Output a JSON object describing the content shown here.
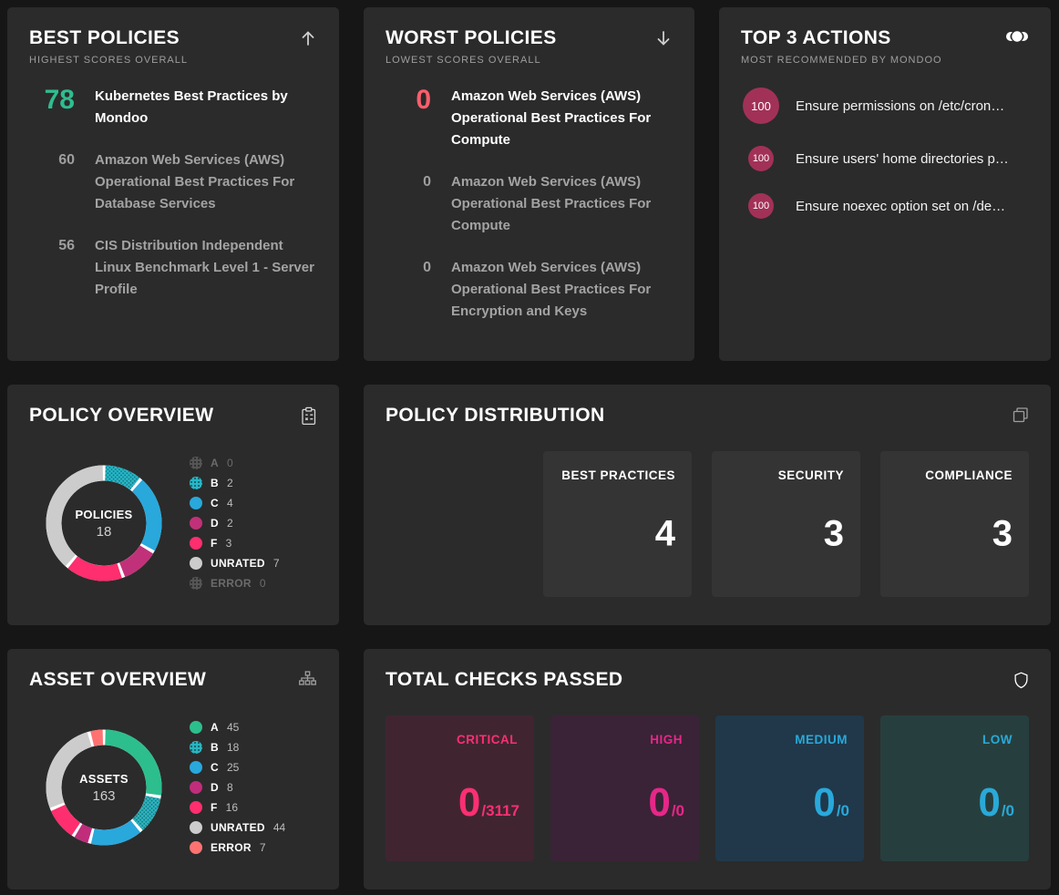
{
  "best_policies": {
    "title": "BEST POLICIES",
    "subtitle": "HIGHEST SCORES OVERALL",
    "accent": "#2ebd8f",
    "items": [
      {
        "score": "78",
        "name": "Kubernetes Best Practices by Mondoo"
      },
      {
        "score": "60",
        "name": "Amazon Web Services (AWS) Operational Best Practices For Database Services"
      },
      {
        "score": "56",
        "name": "CIS Distribution Independent Linux Benchmark Level 1 - Server Profile"
      }
    ]
  },
  "worst_policies": {
    "title": "WORST POLICIES",
    "subtitle": "LOWEST SCORES OVERALL",
    "accent": "#fb5e6c",
    "items": [
      {
        "score": "0",
        "name": "Amazon Web Services (AWS) Operational Best Practices For Compute"
      },
      {
        "score": "0",
        "name": "Amazon Web Services (AWS) Operational Best Practices For Compute"
      },
      {
        "score": "0",
        "name": "Amazon Web Services (AWS) Operational Best Practices For Encryption and Keys"
      }
    ]
  },
  "top_actions": {
    "title": "TOP 3 ACTIONS",
    "subtitle": "MOST RECOMMENDED BY MONDOO",
    "badge_color": "#a23158",
    "items": [
      {
        "score": "100",
        "name": "Ensure permissions on /etc/cron…"
      },
      {
        "score": "100",
        "name": "Ensure users' home directories p…"
      },
      {
        "score": "100",
        "name": "Ensure noexec option set on /de…"
      }
    ]
  },
  "policy_overview": {
    "title": "POLICY OVERVIEW",
    "center_label": "POLICIES",
    "center_value": "18",
    "chart": {
      "type": "donut",
      "total": 18,
      "segments": [
        {
          "grade": "B",
          "value": 2,
          "color": "#26b8c9",
          "textured": true
        },
        {
          "grade": "C",
          "value": 4,
          "color": "#29a8dc"
        },
        {
          "grade": "D",
          "value": 2,
          "color": "#c13179"
        },
        {
          "grade": "F",
          "value": 3,
          "color": "#ff2e6e"
        },
        {
          "grade": "UNRATED",
          "value": 7,
          "color": "#cccccc"
        }
      ]
    },
    "legend": [
      {
        "grade": "A",
        "value": "0",
        "color": "#555555",
        "dim": true
      },
      {
        "grade": "B",
        "value": "2",
        "color": "#26b8c9"
      },
      {
        "grade": "C",
        "value": "4",
        "color": "#29a8dc"
      },
      {
        "grade": "D",
        "value": "2",
        "color": "#c13179"
      },
      {
        "grade": "F",
        "value": "3",
        "color": "#ff2e6e"
      },
      {
        "grade": "UNRATED",
        "value": "7",
        "color": "#cccccc"
      },
      {
        "grade": "ERROR",
        "value": "0",
        "color": "#555555",
        "dim": true
      }
    ]
  },
  "policy_distribution": {
    "title": "POLICY DISTRIBUTION",
    "tile_bg": "#343434",
    "tiles": [
      {
        "label": "BEST PRACTICES",
        "value": "4"
      },
      {
        "label": "SECURITY",
        "value": "3"
      },
      {
        "label": "COMPLIANCE",
        "value": "3"
      }
    ]
  },
  "asset_overview": {
    "title": "ASSET OVERVIEW",
    "center_label": "ASSETS",
    "center_value": "163",
    "chart": {
      "type": "donut",
      "total": 163,
      "segments": [
        {
          "grade": "A",
          "value": 45,
          "color": "#2dbe8e"
        },
        {
          "grade": "B",
          "value": 18,
          "color": "#2ab6c2",
          "textured": true
        },
        {
          "grade": "C",
          "value": 25,
          "color": "#29a8dc"
        },
        {
          "grade": "D",
          "value": 8,
          "color": "#c02d7b"
        },
        {
          "grade": "F",
          "value": 16,
          "color": "#ff2e6e"
        },
        {
          "grade": "UNRATED",
          "value": 44,
          "color": "#cccccc"
        },
        {
          "grade": "ERROR",
          "value": 7,
          "color": "#ff7272"
        }
      ]
    },
    "legend": [
      {
        "grade": "A",
        "value": "45",
        "color": "#2dbe8e"
      },
      {
        "grade": "B",
        "value": "18",
        "color": "#2ab6c2"
      },
      {
        "grade": "C",
        "value": "25",
        "color": "#29a8dc"
      },
      {
        "grade": "D",
        "value": "8",
        "color": "#c02d7b"
      },
      {
        "grade": "F",
        "value": "16",
        "color": "#ff2e6e"
      },
      {
        "grade": "UNRATED",
        "value": "44",
        "color": "#cccccc"
      },
      {
        "grade": "ERROR",
        "value": "7",
        "color": "#ff7272"
      }
    ]
  },
  "total_checks": {
    "title": "TOTAL CHECKS PASSED",
    "tiles": [
      {
        "label": "CRITICAL",
        "passed": "0",
        "total": "/3117",
        "color": "#fb2f72",
        "bg": "#402531"
      },
      {
        "label": "HIGH",
        "passed": "0",
        "total": "/0",
        "color": "#e62788",
        "bg": "#3a2336"
      },
      {
        "label": "MEDIUM",
        "passed": "0",
        "total": "/0",
        "color": "#29a9db",
        "bg": "#20384a"
      },
      {
        "label": "LOW",
        "passed": "0",
        "total": "/0",
        "color": "#2aa9d8",
        "bg": "#263f3e"
      }
    ]
  }
}
